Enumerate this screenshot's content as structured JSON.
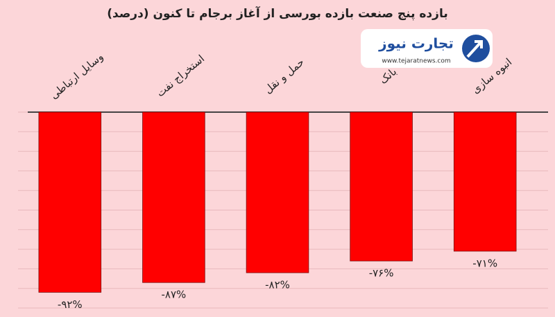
{
  "chart_data": {
    "type": "bar",
    "title": "بازده پنج صنعت بازده بورسی از آغاز برجام تا کنون (درصد)",
    "categories": [
      "وسایل ارتباطی",
      "استخراج نفت",
      "حمل و نقل",
      "بانک",
      "انبوه سازی"
    ],
    "values": [
      -92,
      -87,
      -82,
      -76,
      -71
    ],
    "value_labels": [
      "-۹۲%",
      "-۸۷%",
      "-۸۲%",
      "-۷۶%",
      "-۷۱%"
    ],
    "color": "#ff0000",
    "ylim": [
      -100,
      0
    ],
    "yticks": [
      -100,
      -90,
      -80,
      -70,
      -60,
      -50,
      -40,
      -30,
      -20,
      -10,
      0
    ],
    "grid": true
  },
  "logo": {
    "name": "تجارت نیوز",
    "url": "www.tejaratnews.com"
  }
}
